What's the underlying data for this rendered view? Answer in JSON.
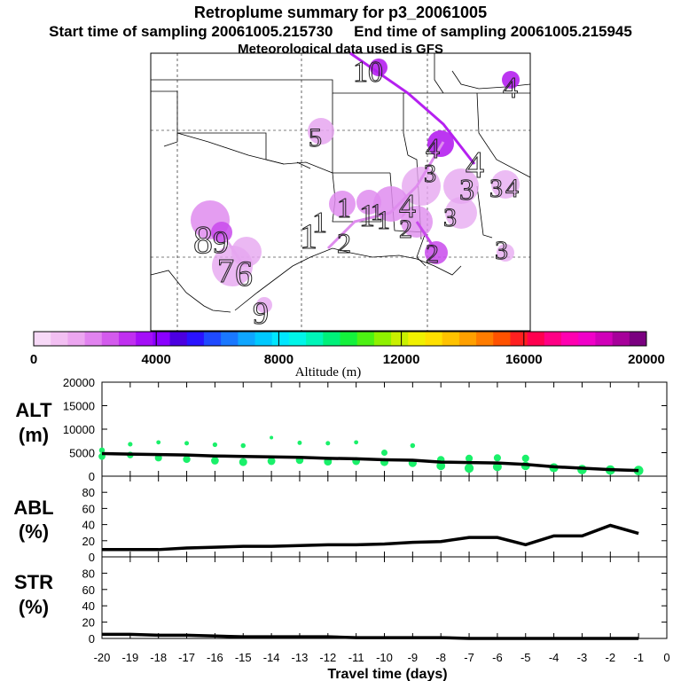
{
  "title": "Retroplume summary for p3_20061005",
  "subtitle_start": "Start time of sampling 20061005.215730",
  "subtitle_end": "End time of sampling 20061005.215945",
  "subtitle_met": "Meteorological data used is GFS",
  "colorbar": {
    "label": "Altitude (m)",
    "ticks": [
      "0",
      "4000",
      "8000",
      "12000",
      "16000",
      "20000"
    ],
    "colors": [
      "#f7d9f7",
      "#f2bff2",
      "#eca6f0",
      "#e183ef",
      "#d35bed",
      "#c02ff0",
      "#a40ef7",
      "#8a00ff",
      "#4b00e0",
      "#2a13ff",
      "#1f4aff",
      "#1a78ff",
      "#0fa6ff",
      "#00c9ff",
      "#00e6ff",
      "#00f5e8",
      "#00f5b8",
      "#00f07a",
      "#14f03c",
      "#4df013",
      "#8ff000",
      "#c9f000",
      "#f0f000",
      "#ffe000",
      "#ffc200",
      "#ffa000",
      "#ff7c00",
      "#ff5200",
      "#ff2020",
      "#ff004f",
      "#ff0085",
      "#ff00b0",
      "#f000c8",
      "#d000b8",
      "#a6009a",
      "#7a0080"
    ]
  },
  "map_labels": [
    {
      "text": "10",
      "type": "label"
    },
    {
      "text": "4",
      "type": "label"
    },
    {
      "text": "5",
      "type": "label"
    },
    {
      "text": "4",
      "type": "label"
    },
    {
      "text": "4",
      "type": "label"
    },
    {
      "text": "3",
      "type": "label"
    },
    {
      "text": "3",
      "type": "label"
    },
    {
      "text": "3",
      "type": "label"
    },
    {
      "text": "4",
      "type": "label"
    },
    {
      "text": "1",
      "type": "label"
    },
    {
      "text": "1",
      "type": "label"
    },
    {
      "text": "1",
      "type": "label"
    },
    {
      "text": "1",
      "type": "label"
    },
    {
      "text": "4",
      "type": "label"
    },
    {
      "text": "1",
      "type": "label"
    },
    {
      "text": "1",
      "type": "label"
    },
    {
      "text": "2",
      "type": "label"
    },
    {
      "text": "2",
      "type": "label"
    },
    {
      "text": "3",
      "type": "label"
    },
    {
      "text": "2",
      "type": "label"
    },
    {
      "text": "3",
      "type": "label"
    },
    {
      "text": "8",
      "type": "label"
    },
    {
      "text": "9",
      "type": "label"
    },
    {
      "text": "7",
      "type": "label"
    },
    {
      "text": "6",
      "type": "label"
    },
    {
      "text": "9",
      "type": "label"
    }
  ],
  "chart_data": [
    {
      "type": "line",
      "panel": "ALT",
      "ylabel": "ALT (m)",
      "ylabel_line1": "ALT",
      "ylabel_line2": "(m)",
      "ylim": [
        0,
        20000
      ],
      "yticks": [
        "20000",
        "15000",
        "10000",
        "5000",
        "0"
      ],
      "x": [
        -20,
        -19,
        -18,
        -17,
        -16,
        -15,
        -14,
        -13,
        -12,
        -11,
        -10,
        -9,
        -8,
        -7,
        -6,
        -5,
        -4,
        -3,
        -2,
        -1
      ],
      "values": [
        4800,
        4700,
        4600,
        4500,
        4300,
        4200,
        4100,
        4000,
        3800,
        3700,
        3500,
        3400,
        3000,
        2900,
        2800,
        2500,
        2000,
        1700,
        1400,
        1200
      ],
      "scatter_x": [
        -20,
        -20,
        -19,
        -19,
        -18,
        -18,
        -17,
        -17,
        -16,
        -16,
        -15,
        -15,
        -14,
        -14,
        -13,
        -13,
        -12,
        -12,
        -11,
        -11,
        -10,
        -10,
        -9,
        -9,
        -8,
        -8,
        -7,
        -7,
        -6,
        -6,
        -5,
        -5,
        -4,
        -3,
        -2,
        -1
      ],
      "scatter_values": [
        5500,
        4200,
        6800,
        4500,
        7200,
        3900,
        7000,
        3600,
        6700,
        3300,
        6500,
        3000,
        8200,
        3200,
        7100,
        3400,
        7000,
        3100,
        7200,
        3200,
        5000,
        3000,
        6500,
        2800,
        3500,
        2200,
        3800,
        1700,
        3900,
        2000,
        3800,
        2200,
        1800,
        1400,
        1300,
        1200
      ]
    },
    {
      "type": "line",
      "panel": "ABL",
      "ylabel": "ABL (%)",
      "ylabel_line1": "ABL",
      "ylabel_line2": "(%)",
      "ylim": [
        0,
        100
      ],
      "yticks": [
        "80",
        "60",
        "40",
        "20",
        "0"
      ],
      "x": [
        -20,
        -19,
        -18,
        -17,
        -16,
        -15,
        -14,
        -13,
        -12,
        -11,
        -10,
        -9,
        -8,
        -7,
        -6,
        -5,
        -4,
        -3,
        -2,
        -1
      ],
      "values": [
        9,
        9,
        9,
        11,
        12,
        13,
        13,
        14,
        15,
        15,
        16,
        18,
        19,
        24,
        24,
        15,
        26,
        26,
        39,
        29
      ]
    },
    {
      "type": "line",
      "panel": "STR",
      "ylabel": "STR (%)",
      "ylabel_line1": "STR",
      "ylabel_line2": "(%)",
      "ylim": [
        0,
        100
      ],
      "yticks": [
        "80",
        "60",
        "40",
        "20",
        "0"
      ],
      "x": [
        -20,
        -19,
        -18,
        -17,
        -16,
        -15,
        -14,
        -13,
        -12,
        -11,
        -10,
        -9,
        -8,
        -7,
        -6,
        -5,
        -4,
        -3,
        -2,
        -1
      ],
      "values": [
        5,
        5,
        4,
        4,
        3,
        2,
        2,
        2,
        2,
        1,
        1,
        1,
        1,
        0,
        0,
        0,
        0,
        0,
        0,
        0
      ],
      "xticks": [
        "-20",
        "-19",
        "-18",
        "-17",
        "-16",
        "-15",
        "-14",
        "-13",
        "-12",
        "-11",
        "-10",
        "-9",
        "-8",
        "-7",
        "-6",
        "-5",
        "-4",
        "-3",
        "-2",
        "-1",
        "0"
      ],
      "xlabel": "Travel time (days)"
    }
  ]
}
